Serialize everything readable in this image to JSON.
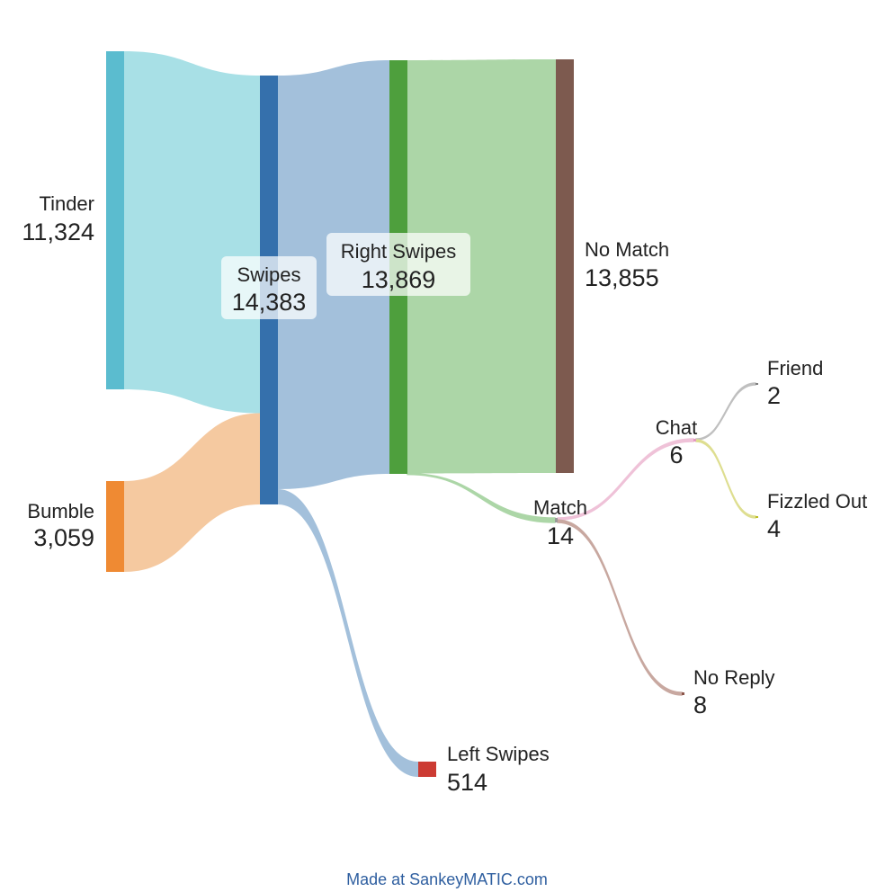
{
  "diagram": {
    "type": "sankey",
    "nodes": [
      {
        "id": "tinder",
        "name": "Tinder",
        "value": 11324,
        "value_label": "11,324",
        "color": "#5bbccf"
      },
      {
        "id": "bumble",
        "name": "Bumble",
        "value": 3059,
        "value_label": "3,059",
        "color": "#ef8a33"
      },
      {
        "id": "swipes",
        "name": "Swipes",
        "value": 14383,
        "value_label": "14,383",
        "color": "#3570ac"
      },
      {
        "id": "right",
        "name": "Right Swipes",
        "value": 13869,
        "value_label": "13,869",
        "color": "#4e9f3d"
      },
      {
        "id": "left",
        "name": "Left Swipes",
        "value": 514,
        "value_label": "514",
        "color": "#cc3b33"
      },
      {
        "id": "nomatch",
        "name": "No Match",
        "value": 13855,
        "value_label": "13,855",
        "color": "#7d5a4f"
      },
      {
        "id": "match",
        "name": "Match",
        "value": 14,
        "value_label": "14",
        "color": "#9a9a9a"
      },
      {
        "id": "chat",
        "name": "Chat",
        "value": 6,
        "value_label": "6",
        "color": "#e39ac0"
      },
      {
        "id": "noreply",
        "name": "No Reply",
        "value": 8,
        "value_label": "8",
        "color": "#8c564b"
      },
      {
        "id": "friend",
        "name": "Friend",
        "value": 2,
        "value_label": "2",
        "color": "#7f7f7f"
      },
      {
        "id": "fizzled",
        "name": "Fizzled Out",
        "value": 4,
        "value_label": "4",
        "color": "#bcbd22"
      }
    ],
    "links": [
      {
        "source": "tinder",
        "target": "swipes",
        "value": 11324,
        "color": "#a8e0e6"
      },
      {
        "source": "bumble",
        "target": "swipes",
        "value": 3059,
        "color": "#f5c9a0"
      },
      {
        "source": "swipes",
        "target": "right",
        "value": 13869,
        "color": "#a3c0db"
      },
      {
        "source": "swipes",
        "target": "left",
        "value": 514,
        "color": "#a3c0db"
      },
      {
        "source": "right",
        "target": "nomatch",
        "value": 13855,
        "color": "#acd6a7"
      },
      {
        "source": "right",
        "target": "match",
        "value": 14,
        "color": "#acd6a7"
      },
      {
        "source": "match",
        "target": "chat",
        "value": 6,
        "color": "#efc2d8"
      },
      {
        "source": "match",
        "target": "noreply",
        "value": 8,
        "color": "#c8a8a0"
      },
      {
        "source": "chat",
        "target": "friend",
        "value": 2,
        "color": "#bfbfbf"
      },
      {
        "source": "chat",
        "target": "fizzled",
        "value": 4,
        "color": "#dede90"
      }
    ]
  },
  "credit": "Made at SankeyMATIC.com"
}
